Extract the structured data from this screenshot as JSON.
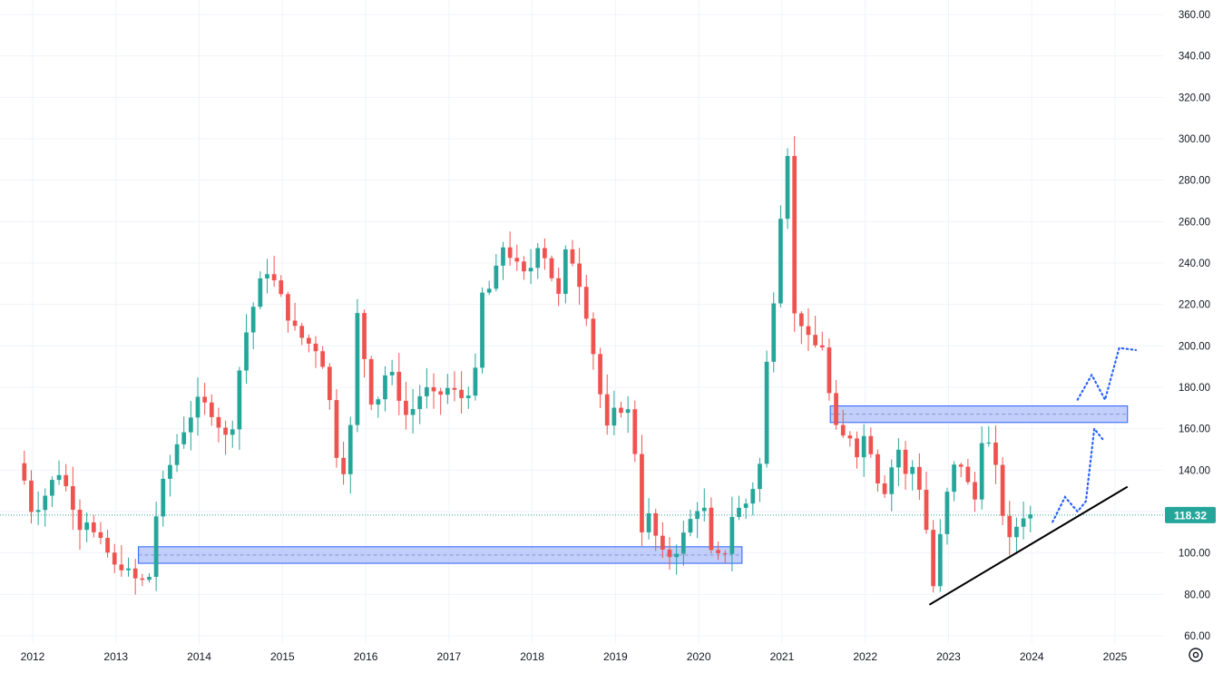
{
  "chart_data": {
    "type": "candlestick",
    "interval": "monthly",
    "y_range": [
      60,
      360
    ],
    "y_ticks": [
      "60.00",
      "80.00",
      "100.00",
      "120.00",
      "140.00",
      "160.00",
      "180.00",
      "200.00",
      "220.00",
      "240.00",
      "260.00",
      "280.00",
      "300.00",
      "320.00",
      "340.00",
      "360.00"
    ],
    "x_ticks": [
      {
        "label": "2012",
        "year": 2012
      },
      {
        "label": "2013",
        "year": 2013
      },
      {
        "label": "2014",
        "year": 2014
      },
      {
        "label": "2015",
        "year": 2015
      },
      {
        "label": "2016",
        "year": 2016
      },
      {
        "label": "2017",
        "year": 2017
      },
      {
        "label": "2018",
        "year": 2018
      },
      {
        "label": "2019",
        "year": 2019
      },
      {
        "label": "2020",
        "year": 2020
      },
      {
        "label": "2021",
        "year": 2021
      },
      {
        "label": "2022",
        "year": 2022
      },
      {
        "label": "2023",
        "year": 2023
      },
      {
        "label": "2024",
        "year": 2024
      },
      {
        "label": "2025",
        "year": 2025
      }
    ],
    "current_price": 118.32,
    "current_price_label": "118.32",
    "colors": {
      "up": "#26a69a",
      "down": "#ef5350",
      "grid": "#f0f3fa",
      "axis_text": "#131722",
      "zone_fill": "#aebff8",
      "zone_stroke": "#2962ff",
      "projection": "#2962ff",
      "trendline": "#000000",
      "price_line": "#26a69a"
    },
    "anchor_points": [
      [
        2011.75,
        150
      ],
      [
        2011.9,
        135
      ],
      [
        2012.0,
        118
      ],
      [
        2012.15,
        128
      ],
      [
        2012.3,
        140
      ],
      [
        2012.45,
        128
      ],
      [
        2012.55,
        112
      ],
      [
        2012.65,
        116
      ],
      [
        2012.75,
        108
      ],
      [
        2012.85,
        104
      ],
      [
        2013.0,
        92
      ],
      [
        2013.1,
        94
      ],
      [
        2013.2,
        88
      ],
      [
        2013.3,
        86
      ],
      [
        2013.45,
        90
      ],
      [
        2013.5,
        132
      ],
      [
        2013.6,
        135
      ],
      [
        2013.7,
        150
      ],
      [
        2013.85,
        162
      ],
      [
        2014.0,
        175
      ],
      [
        2014.1,
        170
      ],
      [
        2014.2,
        165
      ],
      [
        2014.3,
        155
      ],
      [
        2014.45,
        165
      ],
      [
        2014.5,
        200
      ],
      [
        2014.6,
        210
      ],
      [
        2014.7,
        228
      ],
      [
        2014.8,
        237
      ],
      [
        2014.95,
        228
      ],
      [
        2015.05,
        215
      ],
      [
        2015.2,
        205
      ],
      [
        2015.35,
        200
      ],
      [
        2015.45,
        197
      ],
      [
        2015.55,
        180
      ],
      [
        2015.6,
        160
      ],
      [
        2015.7,
        135
      ],
      [
        2015.8,
        150
      ],
      [
        2015.9,
        215
      ],
      [
        2016.0,
        190
      ],
      [
        2016.1,
        165
      ],
      [
        2016.2,
        185
      ],
      [
        2016.3,
        188
      ],
      [
        2016.4,
        175
      ],
      [
        2016.5,
        165
      ],
      [
        2016.6,
        172
      ],
      [
        2016.7,
        180
      ],
      [
        2016.85,
        175
      ],
      [
        2017.0,
        180
      ],
      [
        2017.15,
        175
      ],
      [
        2017.3,
        180
      ],
      [
        2017.4,
        225
      ],
      [
        2017.5,
        228
      ],
      [
        2017.65,
        248
      ],
      [
        2017.8,
        240
      ],
      [
        2017.95,
        232
      ],
      [
        2018.05,
        250
      ],
      [
        2018.2,
        240
      ],
      [
        2018.3,
        220
      ],
      [
        2018.4,
        245
      ],
      [
        2018.5,
        240
      ],
      [
        2018.6,
        225
      ],
      [
        2018.7,
        205
      ],
      [
        2018.8,
        180
      ],
      [
        2018.9,
        160
      ],
      [
        2019.0,
        170
      ],
      [
        2019.2,
        168
      ],
      [
        2019.3,
        110
      ],
      [
        2019.4,
        118
      ],
      [
        2019.55,
        100
      ],
      [
        2019.7,
        98
      ],
      [
        2019.85,
        112
      ],
      [
        2019.95,
        120
      ],
      [
        2020.05,
        125
      ],
      [
        2020.15,
        100
      ],
      [
        2020.3,
        97
      ],
      [
        2020.4,
        118
      ],
      [
        2020.5,
        122
      ],
      [
        2020.6,
        125
      ],
      [
        2020.75,
        145
      ],
      [
        2020.85,
        215
      ],
      [
        2020.95,
        230
      ],
      [
        2021.0,
        280
      ],
      [
        2021.1,
        300
      ],
      [
        2021.15,
        215
      ],
      [
        2021.25,
        210
      ],
      [
        2021.35,
        200
      ],
      [
        2021.5,
        200
      ],
      [
        2021.6,
        165
      ],
      [
        2021.7,
        155
      ],
      [
        2021.8,
        158
      ],
      [
        2021.9,
        148
      ],
      [
        2022.0,
        158
      ],
      [
        2022.1,
        145
      ],
      [
        2022.2,
        125
      ],
      [
        2022.3,
        140
      ],
      [
        2022.4,
        150
      ],
      [
        2022.5,
        135
      ],
      [
        2022.6,
        145
      ],
      [
        2022.7,
        118
      ],
      [
        2022.75,
        108
      ],
      [
        2022.8,
        76
      ],
      [
        2022.85,
        100
      ],
      [
        2022.95,
        116
      ],
      [
        2023.0,
        135
      ],
      [
        2023.1,
        145
      ],
      [
        2023.2,
        140
      ],
      [
        2023.3,
        120
      ],
      [
        2023.4,
        155
      ],
      [
        2023.5,
        152
      ],
      [
        2023.6,
        135
      ],
      [
        2023.7,
        103
      ],
      [
        2023.8,
        112
      ],
      [
        2023.9,
        118
      ],
      [
        2024.0,
        118.32
      ]
    ],
    "support_zones": [
      {
        "x0": 2013.27,
        "x1": 2020.52,
        "y0": 95,
        "y1": 103
      },
      {
        "x0": 2021.58,
        "x1": 2025.15,
        "y0": 163,
        "y1": 171
      }
    ],
    "trendline": {
      "x0": 2022.77,
      "y0": 75,
      "x1": 2025.15,
      "y1": 132
    },
    "projections": [
      [
        [
          2024.25,
          115
        ],
        [
          2024.4,
          127
        ],
        [
          2024.55,
          120
        ],
        [
          2024.65,
          125
        ],
        [
          2024.75,
          160
        ],
        [
          2024.85,
          155
        ]
      ],
      [
        [
          2024.55,
          174
        ],
        [
          2024.72,
          186
        ],
        [
          2024.88,
          174
        ],
        [
          2025.05,
          199
        ],
        [
          2025.25,
          198
        ]
      ]
    ]
  },
  "toolbar": {
    "settings_icon": "settings-icon"
  }
}
